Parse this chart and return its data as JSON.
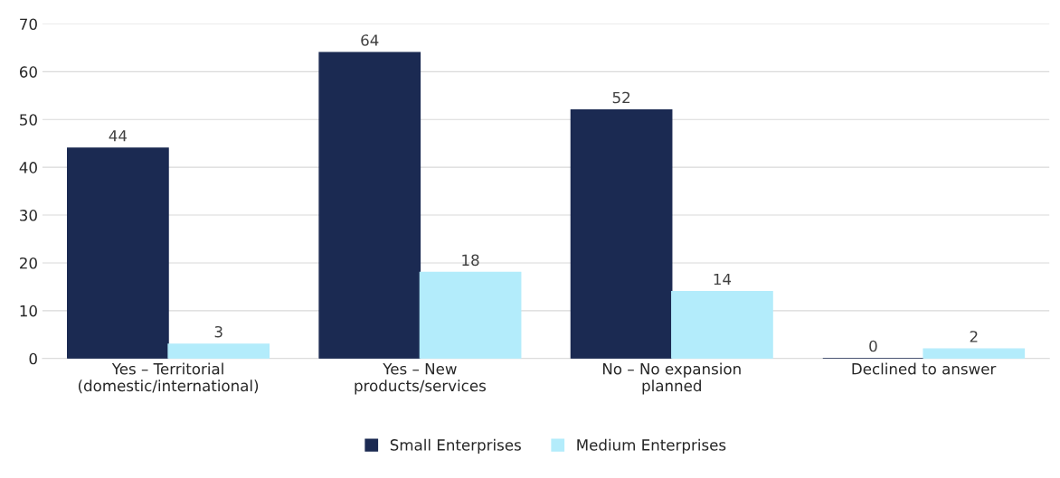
{
  "chart_data": {
    "type": "bar",
    "categories": [
      "Yes – Territorial\n(domestic/international)",
      "Yes – New\nproducts/services",
      "No – No expansion\nplanned",
      "Declined to answer"
    ],
    "series": [
      {
        "name": "Small Enterprises",
        "color": "#1b2a52",
        "values": [
          44,
          64,
          52,
          0
        ]
      },
      {
        "name": "Medium Enterprises",
        "color": "#b3ecfb",
        "values": [
          3,
          18,
          14,
          2
        ]
      }
    ],
    "ylim": [
      0,
      70
    ],
    "yticks": [
      0,
      10,
      20,
      30,
      40,
      50,
      60,
      70
    ],
    "grid": "y",
    "legend": "bottom",
    "data_labels": true
  }
}
